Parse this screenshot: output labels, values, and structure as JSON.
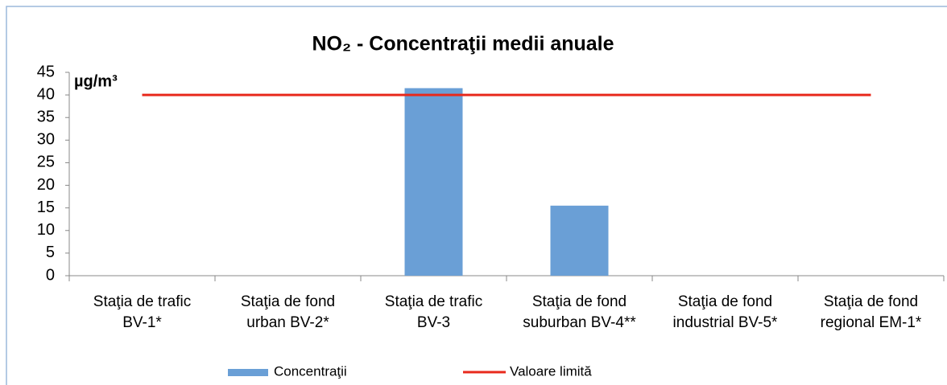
{
  "chart_data": {
    "type": "bar",
    "title": "NO₂ - Concentraţii medii anuale",
    "y_label": "µg/m³",
    "categories": [
      [
        "Staţia de trafic",
        "BV-1*"
      ],
      [
        "Staţia de fond",
        "urban BV-2*"
      ],
      [
        "Staţia de trafic",
        "BV-3"
      ],
      [
        "Staţia de fond",
        "suburban BV-4**"
      ],
      [
        "Staţia de fond",
        "industrial BV-5*"
      ],
      [
        "Staţia de fond",
        "regional EM-1*"
      ]
    ],
    "series": [
      {
        "name": "Concentraţii",
        "type": "bar",
        "color": "#6a9fd6",
        "values": [
          null,
          null,
          41.5,
          15.5,
          null,
          null
        ]
      },
      {
        "name": "Valoare limită",
        "type": "line",
        "color": "#e8291c",
        "values": [
          40,
          40,
          40,
          40,
          40,
          40
        ]
      }
    ],
    "ylim": [
      0,
      45
    ],
    "yticks": [
      0,
      5,
      10,
      15,
      20,
      25,
      30,
      35,
      40,
      45
    ],
    "legend": "bottom"
  }
}
